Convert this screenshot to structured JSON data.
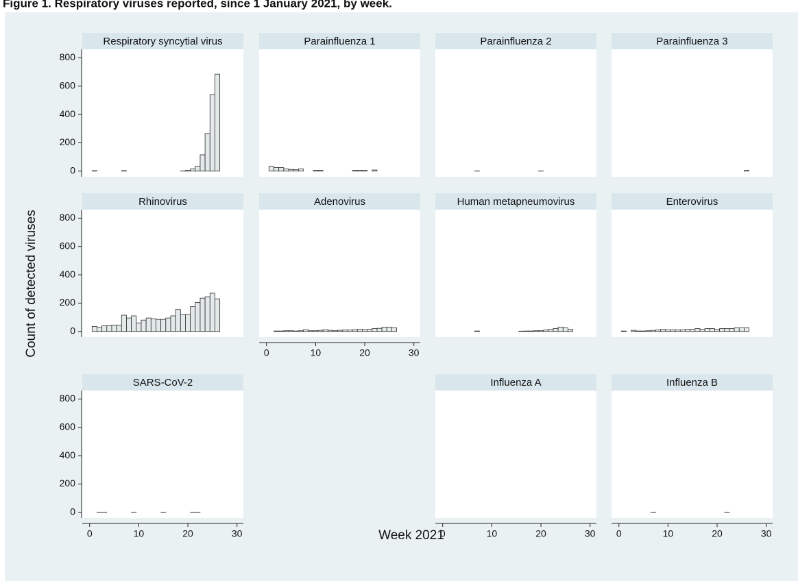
{
  "chart_data": {
    "type": "bar",
    "title": "Figure 1.  Respiratory viruses reported, since 1 January 2021, by week.",
    "xlabel": "Week 2021",
    "ylabel": "Count of detected viruses",
    "x": [
      1,
      2,
      3,
      4,
      5,
      6,
      7,
      8,
      9,
      10,
      11,
      12,
      13,
      14,
      15,
      16,
      17,
      18,
      19,
      20,
      21,
      22,
      23,
      24,
      25,
      26
    ],
    "xlim": [
      -1.5,
      31.3
    ],
    "xticks": [
      0,
      10,
      20,
      30
    ],
    "ylim": [
      -40,
      860
    ],
    "yticks": [
      0,
      200,
      400,
      600,
      800
    ],
    "color": "#e4e9ea",
    "edgecolor": "#2b2b2b",
    "panels": [
      {
        "name": "Respiratory syncytial virus",
        "values": [
          3,
          0,
          0,
          0,
          0,
          0,
          3,
          0,
          0,
          0,
          0,
          0,
          0,
          0,
          0,
          0,
          0,
          0,
          1,
          5,
          15,
          35,
          115,
          265,
          540,
          685
        ]
      },
      {
        "name": "Parainfluenza 1",
        "values": [
          35,
          25,
          25,
          15,
          12,
          10,
          15,
          0,
          0,
          5,
          5,
          0,
          0,
          0,
          0,
          0,
          0,
          5,
          5,
          5,
          0,
          8,
          0,
          0,
          0,
          0
        ]
      },
      {
        "name": "Parainfluenza 2",
        "values": [
          0,
          0,
          0,
          0,
          0,
          0,
          1,
          0,
          0,
          0,
          0,
          0,
          0,
          0,
          0,
          0,
          0,
          0,
          0,
          1,
          0,
          0,
          0,
          0,
          0,
          0
        ]
      },
      {
        "name": "Parainfluenza 3",
        "values": [
          0,
          0,
          0,
          0,
          0,
          0,
          0,
          0,
          0,
          0,
          0,
          0,
          0,
          0,
          0,
          0,
          0,
          0,
          0,
          0,
          0,
          0,
          0,
          0,
          0,
          5
        ]
      },
      {
        "name": "Rhinovirus",
        "values": [
          35,
          30,
          40,
          40,
          45,
          45,
          115,
          95,
          110,
          60,
          80,
          95,
          90,
          85,
          85,
          95,
          110,
          155,
          120,
          120,
          175,
          205,
          235,
          245,
          270,
          230
        ]
      },
      {
        "name": "Adenovirus",
        "values": [
          0,
          3,
          3,
          5,
          5,
          3,
          5,
          12,
          5,
          5,
          8,
          12,
          8,
          5,
          8,
          10,
          10,
          12,
          15,
          12,
          15,
          20,
          22,
          30,
          30,
          25
        ]
      },
      {
        "name": "Human metapneumovirus",
        "values": [
          0,
          0,
          0,
          0,
          0,
          0,
          3,
          0,
          0,
          0,
          0,
          0,
          0,
          0,
          0,
          2,
          3,
          3,
          5,
          5,
          10,
          15,
          20,
          30,
          25,
          15
        ]
      },
      {
        "name": "Enterovirus",
        "values": [
          3,
          0,
          8,
          3,
          3,
          5,
          8,
          10,
          15,
          10,
          12,
          10,
          12,
          15,
          15,
          20,
          15,
          20,
          20,
          15,
          20,
          20,
          20,
          25,
          25,
          25
        ]
      },
      {
        "name": "SARS-CoV-2",
        "values": [
          0,
          1,
          1,
          0,
          0,
          0,
          0,
          0,
          1,
          0,
          0,
          0,
          0,
          0,
          1,
          0,
          0,
          0,
          0,
          0,
          1,
          1,
          0,
          0,
          0,
          0
        ]
      },
      {
        "name": "Influenza A",
        "values": [
          0,
          0,
          0,
          0,
          0,
          0,
          0,
          0,
          0,
          0,
          0,
          0,
          0,
          0,
          0,
          0,
          0,
          0,
          0,
          0,
          0,
          0,
          0,
          0,
          0,
          0
        ]
      },
      {
        "name": "Influenza B",
        "values": [
          0,
          0,
          0,
          0,
          0,
          0,
          1,
          0,
          0,
          0,
          0,
          0,
          0,
          0,
          0,
          0,
          0,
          0,
          0,
          0,
          0,
          1,
          0,
          0,
          0,
          0
        ]
      }
    ]
  }
}
